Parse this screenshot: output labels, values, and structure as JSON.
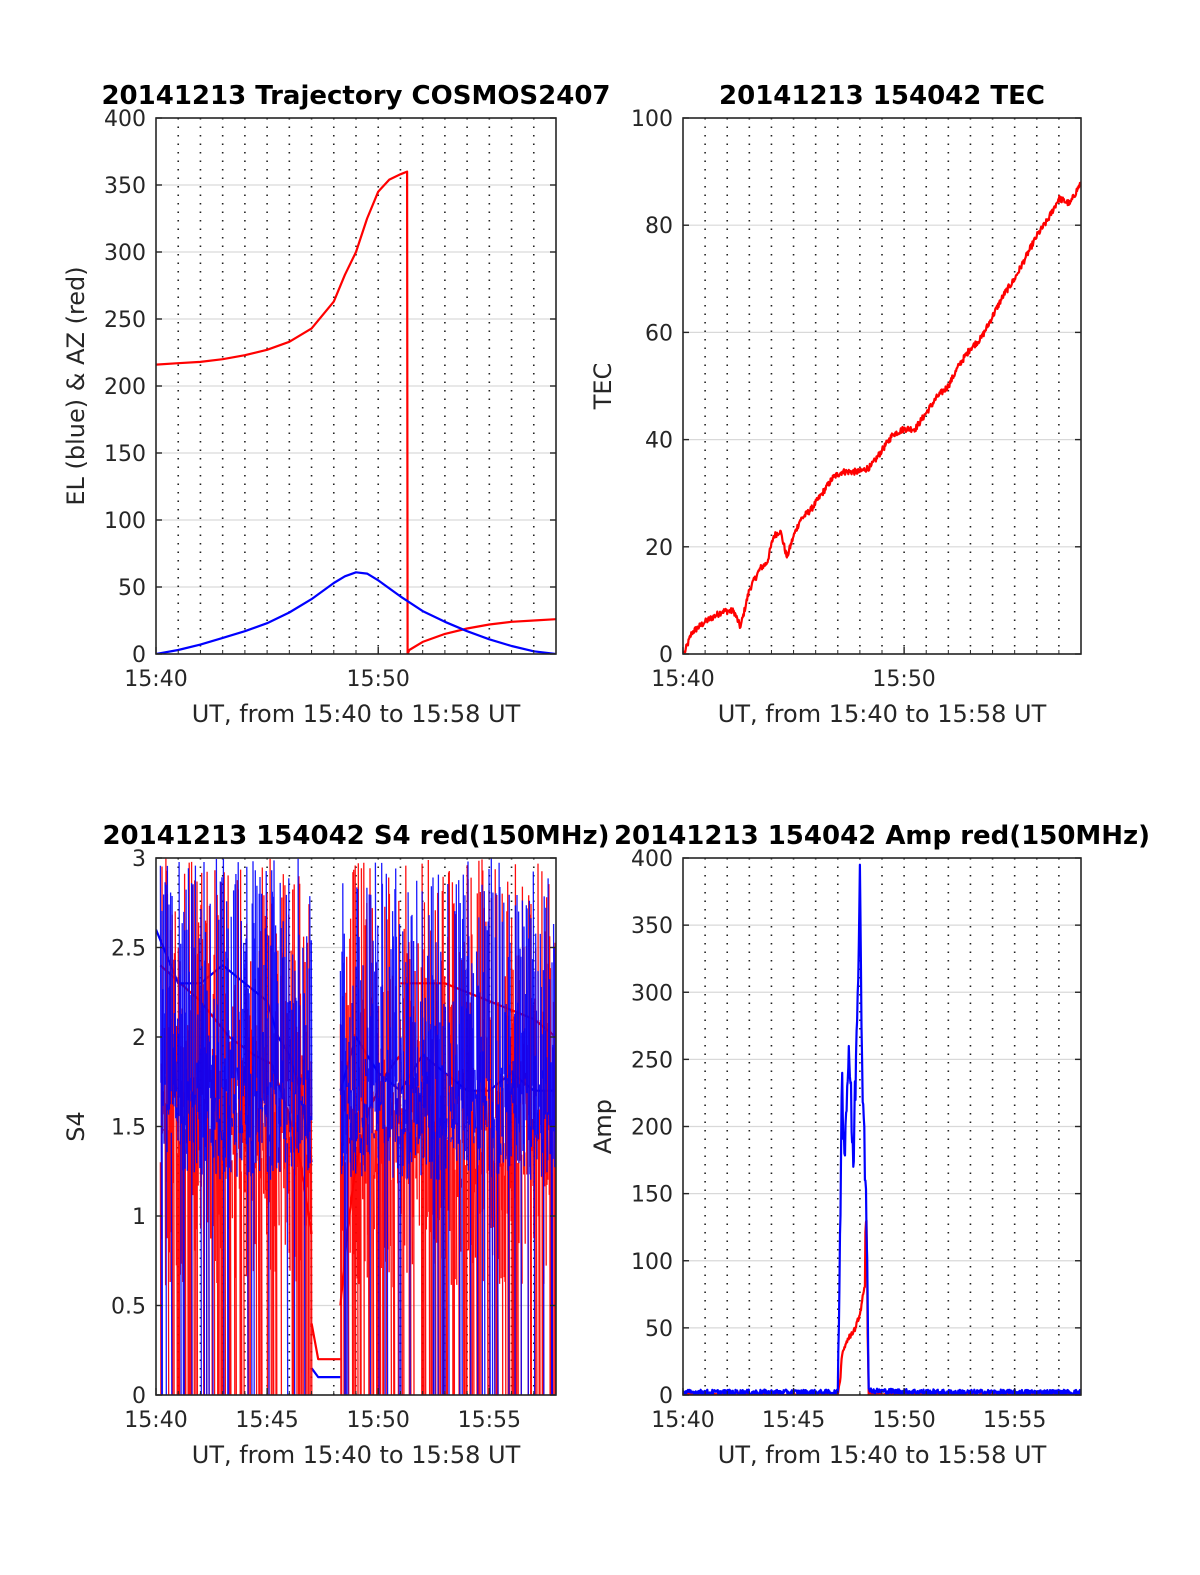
{
  "colors": {
    "red": "#ff0000",
    "blue": "#0000ff",
    "axis": "#262626",
    "grid": "#d9d9d9"
  },
  "chart_data": [
    {
      "id": "trajectory",
      "type": "line",
      "title": "20141213 Trajectory COSMOS2407",
      "xlabel": "UT, from 15:40 to 15:58 UT",
      "ylabel": "EL (blue) & AZ (red)",
      "xlim": [
        0,
        18
      ],
      "ylim": [
        0,
        400
      ],
      "xticks": [
        0,
        10
      ],
      "xticklabels": [
        "15:40",
        "15:50"
      ],
      "yticks": [
        0,
        50,
        100,
        150,
        200,
        250,
        300,
        350,
        400
      ],
      "grid": "y major solid, x minor dotted",
      "series": [
        {
          "color": "red",
          "x": [
            0,
            1,
            2,
            3,
            4,
            5,
            6,
            7,
            8,
            8.5,
            9,
            9.5,
            10,
            10.5,
            11,
            11.3,
            11.32,
            11.4,
            12,
            13,
            14,
            15,
            16,
            17,
            18
          ],
          "y": [
            216,
            217,
            218,
            220,
            223,
            227,
            233,
            243,
            263,
            283,
            300,
            325,
            345,
            354,
            358,
            360,
            0,
            3,
            9,
            15,
            19,
            22,
            24,
            25,
            26
          ]
        },
        {
          "color": "blue",
          "x": [
            0,
            1,
            2,
            3,
            4,
            5,
            6,
            7,
            8,
            8.5,
            9,
            9.5,
            10,
            11,
            12,
            13,
            14,
            15,
            16,
            17,
            18
          ],
          "y": [
            0,
            3,
            7,
            12,
            17,
            23,
            31,
            41,
            53,
            58,
            61,
            60,
            55,
            43,
            32,
            24,
            17,
            11,
            6,
            2,
            0
          ]
        }
      ]
    },
    {
      "id": "tec",
      "type": "line",
      "title": "20141213 154042 TEC",
      "xlabel": "UT, from 15:40 to 15:58 UT",
      "ylabel": "TEC",
      "xlim": [
        0,
        18
      ],
      "ylim": [
        0,
        100
      ],
      "xticks": [
        0,
        10
      ],
      "xticklabels": [
        "15:40",
        "15:50"
      ],
      "yticks": [
        0,
        20,
        40,
        60,
        80,
        100
      ],
      "grid": "y major solid, x minor dotted",
      "series": [
        {
          "color": "red",
          "x": [
            0.05,
            0.4,
            1,
            1.8,
            2.3,
            2.6,
            3,
            3.5,
            3.8,
            4.1,
            4.4,
            4.7,
            5,
            5.3,
            5.8,
            6.3,
            6.8,
            7.2,
            8,
            8.5,
            9,
            9.5,
            10,
            10.5,
            11,
            11.5,
            12,
            12.5,
            13,
            13.5,
            14,
            14.5,
            15,
            15.5,
            16,
            16.5,
            17,
            17.5,
            18
          ],
          "y": [
            0,
            4,
            6,
            8,
            8,
            5,
            12,
            16,
            17,
            22,
            23,
            18,
            22,
            25,
            27,
            30,
            33,
            34,
            34,
            35,
            38,
            41,
            42,
            42,
            45,
            48,
            50,
            54,
            57,
            59,
            63,
            67,
            70,
            74,
            78,
            81,
            85,
            84,
            88
          ]
        }
      ]
    },
    {
      "id": "s4",
      "type": "line",
      "title": "20141213 154042 S4 red(150MHz)",
      "xlabel": "UT, from 15:40 to 15:58 UT",
      "ylabel": "S4",
      "xlim": [
        0,
        18
      ],
      "ylim": [
        0,
        3
      ],
      "xticks": [
        0,
        5,
        10,
        15
      ],
      "xticklabels": [
        "15:40",
        "15:45",
        "15:50",
        "15:55"
      ],
      "yticks": [
        0,
        0.5,
        1,
        1.5,
        2,
        2.5,
        3
      ],
      "grid": "y major solid, x minor dotted",
      "series": [
        {
          "color": "red",
          "segments": [
            {
              "x": [
                0.2,
                2.0,
                3.3,
                4.4,
                5.2,
                5.9,
                6.5,
                7.0
              ],
              "y": [
                2.4,
                2.2,
                2.0,
                1.9,
                1.85,
                1.6,
                1.3,
                0.9
              ]
            },
            {
              "x": [
                7.0,
                7.3,
                7.6,
                8.0,
                8.3
              ],
              "y": [
                0.4,
                0.2,
                0.2,
                0.2,
                0.2
              ]
            },
            {
              "x": [
                8.3,
                8.6,
                8.9,
                9.2,
                9.6,
                10.0,
                10.4,
                11.0
              ],
              "y": [
                0.5,
                0.9,
                1.2,
                1.4,
                1.6,
                1.7,
                1.8,
                1.9
              ]
            },
            {
              "x": [
                11.0,
                13.0,
                15.0,
                17.0,
                18.0
              ],
              "y": [
                2.3,
                2.3,
                2.2,
                2.1,
                2.0
              ]
            }
          ]
        },
        {
          "color": "blue",
          "segments": [
            {
              "x": [
                0,
                1,
                2,
                3,
                4,
                5,
                5.5,
                6,
                6.5,
                7.0
              ],
              "y": [
                2.6,
                2.3,
                2.3,
                2.4,
                2.3,
                2.2,
                2.0,
                1.9,
                1.7,
                1.3
              ]
            },
            {
              "x": [
                7.0,
                7.3,
                7.6,
                8.0,
                8.3
              ],
              "y": [
                0.15,
                0.1,
                0.1,
                0.1,
                0.1
              ]
            },
            {
              "x": [
                8.3,
                9,
                10,
                11,
                12,
                13,
                14,
                15,
                16,
                17,
                18
              ],
              "y": [
                1.7,
                2.0,
                1.8,
                1.7,
                1.9,
                1.8,
                1.7,
                1.7,
                1.8,
                1.7,
                1.7
              ]
            }
          ]
        }
      ]
    },
    {
      "id": "amp",
      "type": "line",
      "title": "20141213 154042 Amp red(150MHz)",
      "xlabel": "UT, from 15:40 to 15:58 UT",
      "ylabel": "Amp",
      "xlim": [
        0,
        18
      ],
      "ylim": [
        0,
        400
      ],
      "xticks": [
        0,
        5,
        10,
        15
      ],
      "xticklabels": [
        "15:40",
        "15:45",
        "15:50",
        "15:55"
      ],
      "yticks": [
        0,
        50,
        100,
        150,
        200,
        250,
        300,
        350,
        400
      ],
      "grid": "y major solid, x minor dotted",
      "series": [
        {
          "color": "red",
          "x": [
            0,
            7.0,
            7.1,
            7.2,
            7.4,
            7.6,
            7.8,
            8.0,
            8.2,
            8.3,
            8.4,
            9,
            18
          ],
          "y": [
            0,
            0,
            10,
            30,
            40,
            45,
            50,
            60,
            80,
            130,
            0,
            0,
            0
          ]
        },
        {
          "color": "blue",
          "x": [
            0,
            6.5,
            7.0,
            7.1,
            7.2,
            7.3,
            7.5,
            7.7,
            7.9,
            8.0,
            8.1,
            8.2,
            8.3,
            8.4,
            8.6,
            12,
            18
          ],
          "y": [
            2,
            2,
            2,
            120,
            240,
            180,
            260,
            170,
            300,
            395,
            250,
            200,
            120,
            5,
            3,
            2,
            2
          ]
        }
      ]
    }
  ]
}
